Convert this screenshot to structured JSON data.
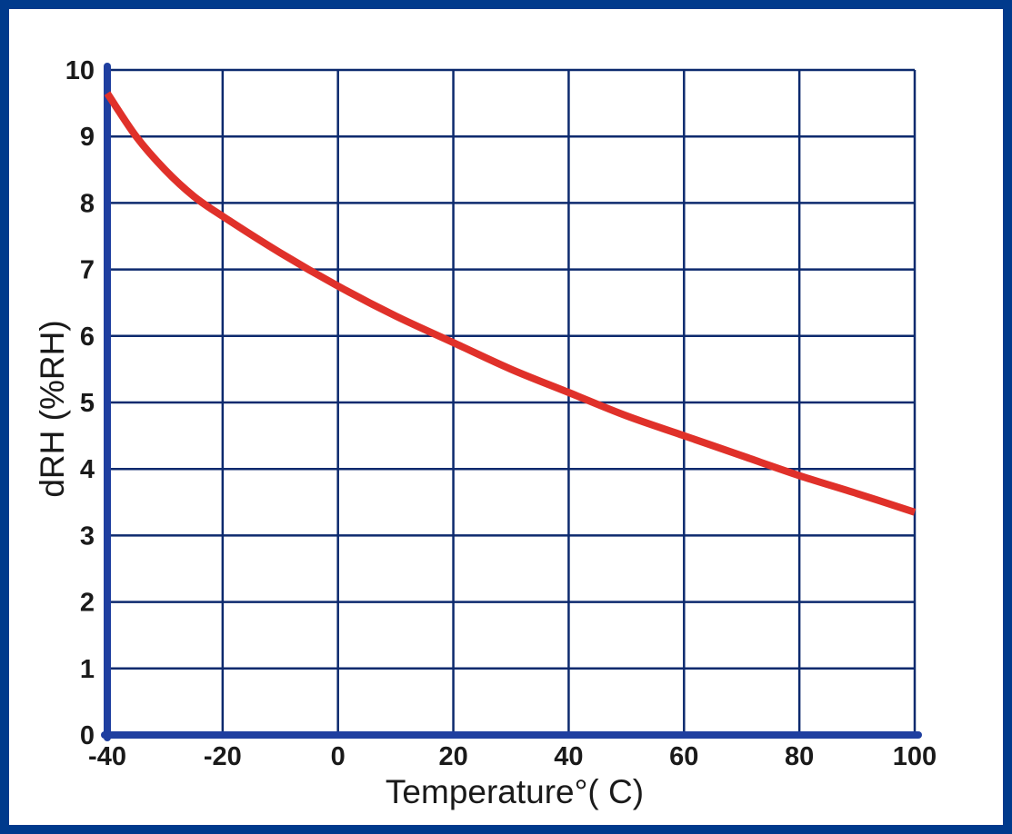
{
  "chart_data": {
    "type": "line",
    "xlabel": "Temperature°( C)",
    "ylabel": "dRH (%RH)",
    "xlim": [
      -40,
      100
    ],
    "ylim": [
      0,
      10
    ],
    "x_ticks": [
      -40,
      -20,
      0,
      20,
      40,
      60,
      80,
      100
    ],
    "y_ticks": [
      0,
      1,
      2,
      3,
      4,
      5,
      6,
      7,
      8,
      9,
      10
    ],
    "grid": true,
    "series": [
      {
        "color": "#e0312a",
        "x": [
          -40,
          -35,
          -30,
          -25,
          -20,
          -10,
          0,
          10,
          20,
          30,
          40,
          50,
          60,
          70,
          80,
          90,
          100
        ],
        "y": [
          9.65,
          9.0,
          8.5,
          8.1,
          7.8,
          7.25,
          6.75,
          6.3,
          5.9,
          5.5,
          5.15,
          4.8,
          4.5,
          4.2,
          3.9,
          3.63,
          3.35
        ]
      }
    ]
  },
  "colors": {
    "frame": "#003a8c",
    "grid": "#0d2a6e",
    "axis": "#1f3fa0",
    "line": "#e0312a"
  }
}
